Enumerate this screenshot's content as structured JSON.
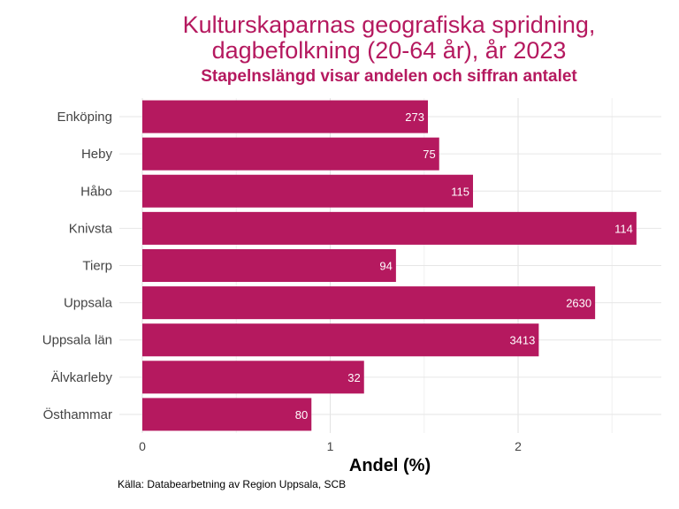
{
  "chart_data": {
    "type": "bar",
    "orientation": "horizontal",
    "title_line1": "Kulturskaparnas geografiska spridning,",
    "title_line2": "dagbefolkning (20-64 år), år 2023",
    "subtitle": "Stapelnslängd visar andelen och siffran antalet",
    "xlabel": "Andel (%)",
    "ylabel": "",
    "xlim": [
      0,
      2.75
    ],
    "xticks": [
      0,
      1,
      2
    ],
    "grid": true,
    "bar_color": "#b5195f",
    "categories": [
      "Enköping",
      "Heby",
      "Håbo",
      "Knivsta",
      "Tierp",
      "Uppsala",
      "Uppsala län",
      "Älvkarleby",
      "Östhammar"
    ],
    "values": [
      1.52,
      1.58,
      1.76,
      2.63,
      1.35,
      2.41,
      2.11,
      1.18,
      0.9
    ],
    "labels": [
      "273",
      "75",
      "115",
      "114",
      "94",
      "2630",
      "3413",
      "32",
      "80"
    ]
  },
  "source": "Källa: Databearbetning av Region Uppsala, SCB"
}
